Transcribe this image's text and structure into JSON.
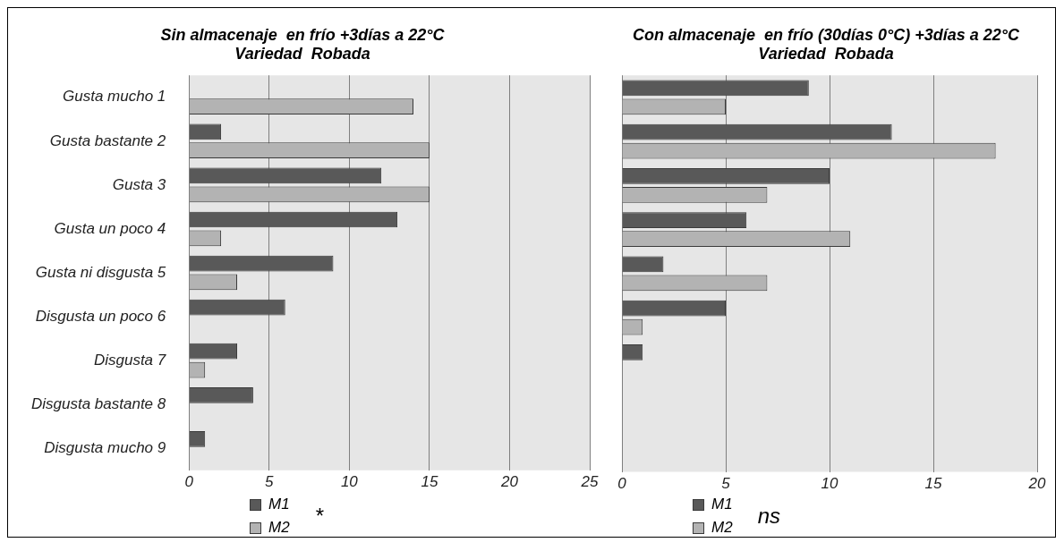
{
  "chart_data": [
    {
      "type": "bar",
      "orientation": "horizontal",
      "title": "Sin almacenaje  en frío +3días a 22°C\nVariedad  Robada",
      "categories": [
        "Gusta mucho 1",
        "Gusta bastante 2",
        "Gusta 3",
        "Gusta un poco 4",
        "Gusta ni disgusta 5",
        "Disgusta un poco 6",
        "Disgusta 7",
        "Disgusta bastante 8",
        "Disgusta mucho 9"
      ],
      "series": [
        {
          "name": "M1",
          "color": "#595959",
          "values": [
            0,
            2,
            12,
            13,
            9,
            6,
            3,
            4,
            1
          ]
        },
        {
          "name": "M2",
          "color": "#b3b3b3",
          "values": [
            14,
            15,
            15,
            2,
            3,
            0,
            1,
            0,
            0
          ]
        }
      ],
      "xlim": [
        0,
        25
      ],
      "xticks": [
        0,
        5,
        10,
        15,
        20,
        25
      ],
      "grid": "x",
      "legend": "bottom",
      "annotations": [
        "*"
      ]
    },
    {
      "type": "bar",
      "orientation": "horizontal",
      "title": "Con almacenaje  en frío (30días 0°C) +3días a 22°C\nVariedad  Robada",
      "categories": [
        null,
        null,
        null,
        null,
        null,
        null,
        null,
        null,
        null
      ],
      "series": [
        {
          "name": "M1",
          "color": "#595959",
          "values": [
            9,
            13,
            10,
            6,
            2,
            5,
            1,
            0,
            0
          ]
        },
        {
          "name": "M2",
          "color": "#b3b3b3",
          "values": [
            5,
            18,
            7,
            11,
            7,
            1,
            0,
            0,
            0
          ]
        }
      ],
      "xlim": [
        0,
        20
      ],
      "xticks": [
        0,
        5,
        10,
        15,
        20
      ],
      "grid": "x",
      "legend": "bottom",
      "tick_labels": "x",
      "annotations": [
        "ns"
      ]
    }
  ]
}
